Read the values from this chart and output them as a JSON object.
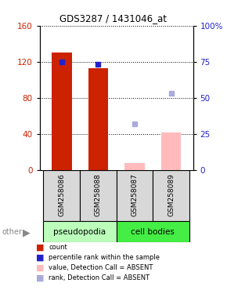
{
  "title": "GDS3287 / 1431046_at",
  "samples": [
    "GSM258086",
    "GSM258088",
    "GSM258087",
    "GSM258089"
  ],
  "bar_colors_count": [
    "#cc2200",
    "#cc2200",
    "#ffbbbb",
    "#ffbbbb"
  ],
  "bar_colors_rank": [
    "#2222cc",
    "#2222cc",
    "#aaaadd",
    "#aaaadd"
  ],
  "count_values": [
    130,
    113,
    8,
    42
  ],
  "rank_values": [
    75,
    73,
    32,
    53
  ],
  "ylim_left": [
    0,
    160
  ],
  "ylim_right": [
    0,
    100
  ],
  "yticks_left": [
    0,
    40,
    80,
    120,
    160
  ],
  "yticks_right": [
    0,
    25,
    50,
    75,
    100
  ],
  "yticklabels_right": [
    "0",
    "25",
    "50",
    "75",
    "100%"
  ],
  "group_colors": {
    "pseudopodia": "#bbffbb",
    "cell bodies": "#44ee44"
  },
  "legend_items": [
    {
      "label": "count",
      "color": "#cc2200"
    },
    {
      "label": "percentile rank within the sample",
      "color": "#2222cc"
    },
    {
      "label": "value, Detection Call = ABSENT",
      "color": "#ffbbbb"
    },
    {
      "label": "rank, Detection Call = ABSENT",
      "color": "#aaaadd"
    }
  ]
}
